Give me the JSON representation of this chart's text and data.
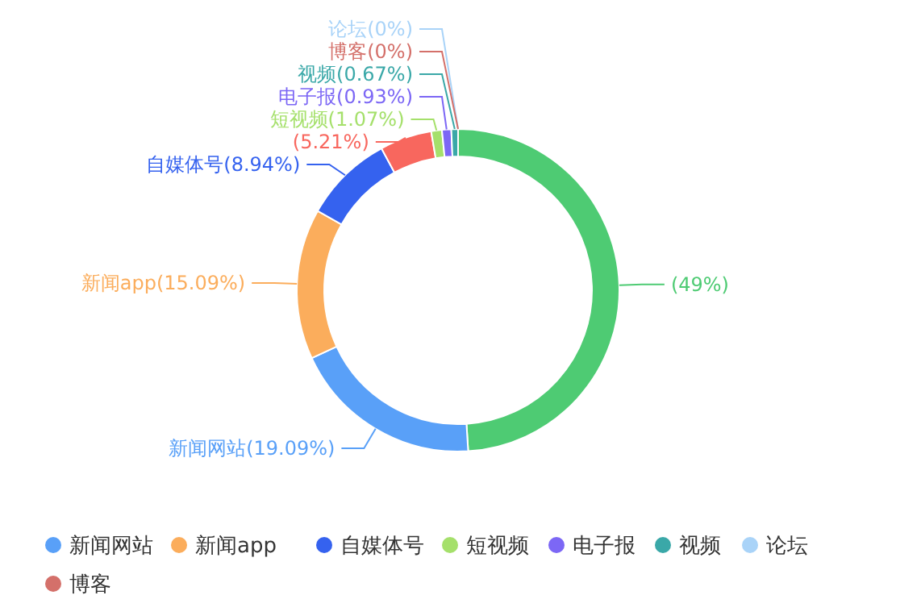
{
  "chart_data": {
    "type": "donut",
    "categories": [
      null,
      "新闻网站",
      "新闻app",
      "自媒体号",
      null,
      "短视频",
      "电子报",
      "视频",
      "论坛",
      "博客"
    ],
    "values": [
      49,
      19.09,
      15.09,
      8.94,
      5.21,
      1.07,
      0.93,
      0.67,
      0,
      0
    ],
    "colors": [
      "#4ecb73",
      "#59a0f8",
      "#fbad5c",
      "#3562ef",
      "#f8675e",
      "#a5e06b",
      "#7c67f5",
      "#3aa8a8",
      "#a9d3f8",
      "#d4706a"
    ],
    "value_labels": [
      "(49%)",
      "(19.09%)",
      "(15.09%)",
      "(8.94%)",
      "(5.21%)",
      "(1.07%)",
      "(0.93%)",
      "(0.67%)",
      "(0%)",
      "(0%)"
    ],
    "legend": "bottom"
  }
}
